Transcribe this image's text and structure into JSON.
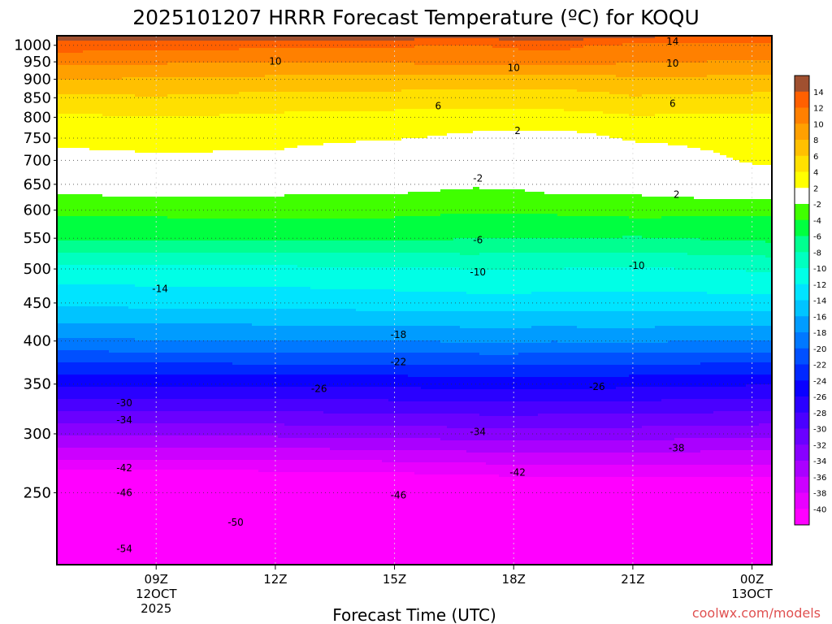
{
  "chart_data": {
    "type": "heatmap",
    "title": "2025101207 HRRR Forecast Temperature (ºC) for KOQU",
    "xlabel": "Forecast Time (UTC)",
    "ylabel": "",
    "credit": "coolwx.com/models",
    "x_range_hours": [
      6.5,
      24.5
    ],
    "x_ticks": [
      {
        "hour": 9,
        "lines": [
          "09Z",
          "12OCT",
          "2025"
        ]
      },
      {
        "hour": 12,
        "lines": [
          "12Z"
        ]
      },
      {
        "hour": 15,
        "lines": [
          "15Z"
        ]
      },
      {
        "hour": 18,
        "lines": [
          "18Z"
        ]
      },
      {
        "hour": 21,
        "lines": [
          "21Z"
        ]
      },
      {
        "hour": 24,
        "lines": [
          "00Z",
          "13OCT"
        ]
      }
    ],
    "y_scale": "log-pressure",
    "y_range_hpa": [
      1030,
      200
    ],
    "y_ticks": [
      250,
      300,
      350,
      400,
      450,
      500,
      550,
      600,
      650,
      700,
      750,
      800,
      850,
      900,
      950,
      1000
    ],
    "grid": true,
    "colorbar": {
      "levels": [
        -40,
        -38,
        -36,
        -34,
        -32,
        -30,
        -28,
        -26,
        -24,
        -22,
        -20,
        -18,
        -16,
        -14,
        -12,
        -10,
        -8,
        -6,
        -4,
        -2,
        2,
        4,
        6,
        8,
        10,
        12,
        14
      ],
      "colors": [
        "#ff00ff",
        "#e800ff",
        "#cc00ff",
        "#aa00ff",
        "#8800ff",
        "#6a00ff",
        "#4a00ff",
        "#2a00ff",
        "#0a00ff",
        "#0028ff",
        "#0050ff",
        "#0078ff",
        "#009cff",
        "#00c4ff",
        "#00e4ff",
        "#00ffe6",
        "#00ffc0",
        "#00ff90",
        "#00ff40",
        "#40ff00",
        "#ffffff",
        "#ffff00",
        "#ffe000",
        "#ffc000",
        "#ffa000",
        "#ff8000",
        "#ff6000",
        "#a05030"
      ]
    },
    "temperature_profile": {
      "pressure_hpa": [
        1030,
        1000,
        950,
        900,
        850,
        800,
        750,
        700,
        650,
        600,
        550,
        500,
        450,
        400,
        350,
        300,
        250,
        200
      ],
      "hours": [
        6.5,
        9,
        12,
        15,
        17,
        18,
        19,
        20,
        21,
        24,
        24.5
      ],
      "temp_c": [
        [
          15.5,
          15.5,
          15.5,
          15.2,
          15.0,
          15.2,
          15.5,
          15.0,
          14.5,
          13.8,
          13.8
        ],
        [
          13.0,
          12.8,
          12.5,
          12.2,
          12.0,
          12.3,
          12.6,
          12.0,
          11.6,
          11.0,
          11.0
        ],
        [
          10.5,
          10.3,
          10.0,
          10.3,
          10.5,
          10.8,
          11.0,
          10.5,
          10.2,
          9.8,
          9.8
        ],
        [
          8.0,
          7.8,
          7.5,
          7.3,
          7.0,
          7.0,
          7.0,
          7.2,
          7.6,
          7.5,
          7.4
        ],
        [
          5.5,
          5.8,
          5.3,
          5.2,
          5.2,
          5.2,
          5.2,
          5.4,
          5.8,
          5.5,
          5.4
        ],
        [
          3.6,
          4.0,
          3.6,
          3.3,
          3.2,
          3.2,
          3.2,
          3.4,
          3.8,
          3.6,
          3.6
        ],
        [
          2.6,
          2.8,
          2.7,
          2.2,
          1.5,
          1.4,
          1.3,
          1.6,
          2.3,
          2.6,
          2.6
        ],
        [
          1.2,
          1.6,
          1.4,
          -0.3,
          -0.8,
          -0.8,
          -0.4,
          -0.2,
          0.4,
          2.3,
          2.4
        ],
        [
          -1.0,
          -0.6,
          -1.0,
          -1.2,
          -1.7,
          -1.6,
          -1.0,
          -1.0,
          -1.2,
          0.3,
          0.4
        ],
        [
          -3.6,
          -3.5,
          -3.3,
          -3.4,
          -3.8,
          -3.8,
          -3.6,
          -3.5,
          -3.2,
          -3.6,
          -3.6
        ],
        [
          -5.7,
          -5.5,
          -5.5,
          -5.7,
          -5.9,
          -6.0,
          -6.0,
          -6.0,
          -6.2,
          -5.6,
          -5.5
        ],
        [
          -10.8,
          -10.6,
          -10.5,
          -10.3,
          -10.0,
          -10.0,
          -10.0,
          -10.2,
          -10.2,
          -9.8,
          -9.7
        ],
        [
          -13.5,
          -13.4,
          -13.3,
          -13.0,
          -12.8,
          -12.8,
          -12.9,
          -12.8,
          -12.8,
          -12.9,
          -12.9
        ],
        [
          -18.3,
          -18.2,
          -18.0,
          -18.0,
          -17.8,
          -17.8,
          -17.9,
          -17.8,
          -17.8,
          -18.1,
          -18.1
        ],
        [
          -25.5,
          -25.5,
          -25.6,
          -25.5,
          -25.2,
          -25.1,
          -25.3,
          -25.3,
          -25.5,
          -25.8,
          -25.9
        ],
        [
          -33.6,
          -33.6,
          -33.5,
          -33.2,
          -33.0,
          -32.9,
          -33.0,
          -33.0,
          -33.0,
          -33.4,
          -33.5
        ],
        [
          -44.0,
          -44.0,
          -43.8,
          -43.5,
          -43.0,
          -42.8,
          -42.8,
          -42.7,
          -42.6,
          -42.5,
          -42.4
        ],
        [
          -56.0,
          -55.5,
          -54.5,
          -53.5,
          -53.0,
          -53.0,
          -53.0,
          -53.0,
          -53.0,
          -53.0,
          -53.0
        ]
      ]
    },
    "contour_labels": [
      {
        "text": "-54",
        "hour": 8.2,
        "p": 210
      },
      {
        "text": "-50",
        "hour": 11.0,
        "p": 228
      },
      {
        "text": "-46",
        "hour": 8.2,
        "p": 250
      },
      {
        "text": "-46",
        "hour": 15.1,
        "p": 248
      },
      {
        "text": "-42",
        "hour": 8.2,
        "p": 270
      },
      {
        "text": "-42",
        "hour": 18.1,
        "p": 266
      },
      {
        "text": "-38",
        "hour": 22.1,
        "p": 287
      },
      {
        "text": "-34",
        "hour": 8.2,
        "p": 313
      },
      {
        "text": "-34",
        "hour": 17.1,
        "p": 302
      },
      {
        "text": "-30",
        "hour": 8.2,
        "p": 330
      },
      {
        "text": "-26",
        "hour": 13.1,
        "p": 345
      },
      {
        "text": "-26",
        "hour": 20.1,
        "p": 347
      },
      {
        "text": "-22",
        "hour": 15.1,
        "p": 375
      },
      {
        "text": "-18",
        "hour": 15.1,
        "p": 408
      },
      {
        "text": "-14",
        "hour": 9.1,
        "p": 470
      },
      {
        "text": "-10",
        "hour": 17.1,
        "p": 495
      },
      {
        "text": "-10",
        "hour": 21.1,
        "p": 505
      },
      {
        "text": "-6",
        "hour": 17.1,
        "p": 547
      },
      {
        "text": "-2",
        "hour": 17.1,
        "p": 662
      },
      {
        "text": "2",
        "hour": 22.1,
        "p": 630
      },
      {
        "text": "2",
        "hour": 18.1,
        "p": 767
      },
      {
        "text": "6",
        "hour": 16.1,
        "p": 828
      },
      {
        "text": "6",
        "hour": 22.0,
        "p": 835
      },
      {
        "text": "10",
        "hour": 12.0,
        "p": 952
      },
      {
        "text": "10",
        "hour": 18.0,
        "p": 932
      },
      {
        "text": "10",
        "hour": 22.0,
        "p": 946
      },
      {
        "text": "14",
        "hour": 22.0,
        "p": 1012
      }
    ]
  }
}
